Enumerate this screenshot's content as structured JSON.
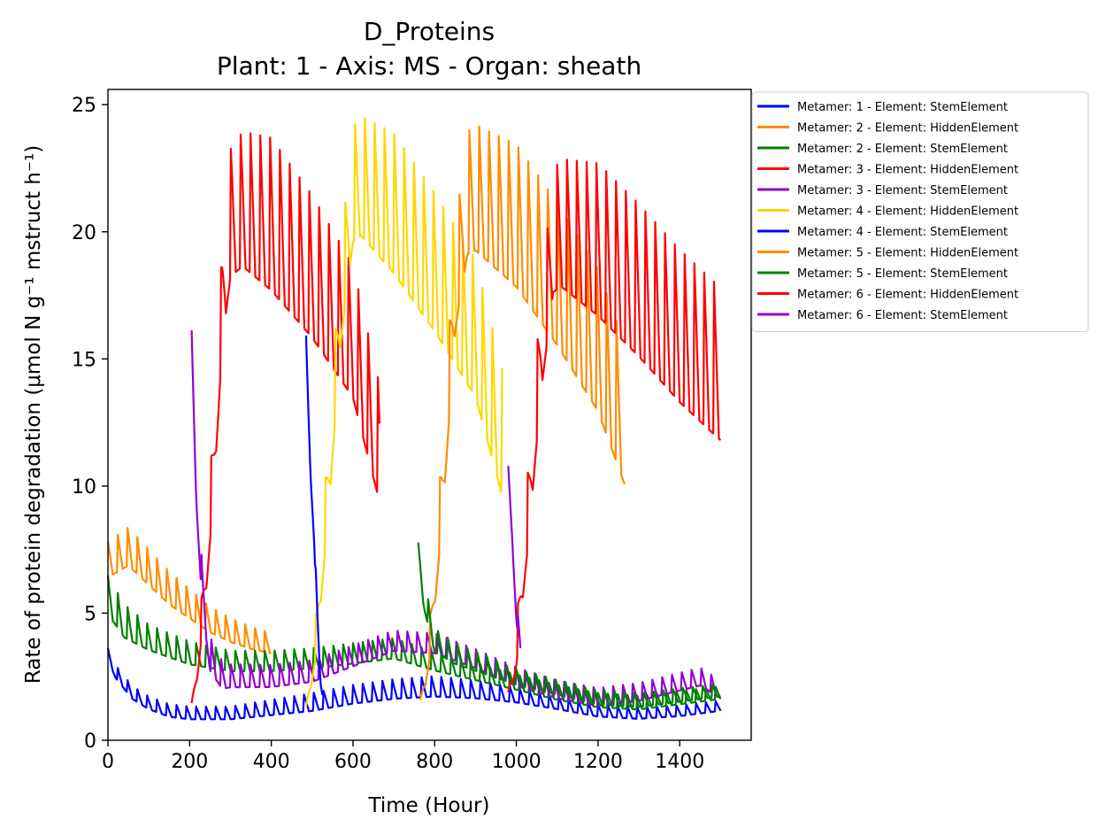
{
  "chart_data": {
    "type": "line",
    "title": "D_Proteins",
    "subtitle": "Plant: 1 - Axis: MS - Organ: sheath",
    "xlabel": "Time (Hour)",
    "ylabel": "Rate of protein degradation (μmol N g⁻¹ mstruct h⁻¹)",
    "xlim": [
      0,
      1575
    ],
    "ylim": [
      0,
      25.6
    ],
    "xticks": [
      0,
      200,
      400,
      600,
      800,
      1000,
      1200,
      1400
    ],
    "yticks": [
      0,
      5,
      10,
      15,
      20,
      25
    ],
    "grid": false,
    "legend_position": "outside-right",
    "series": [
      {
        "name": "Metamer: 1 - Element: StemElement",
        "color": "#0000ff",
        "t_start": 0,
        "t_end": 1500,
        "points": [
          [
            0,
            3.3
          ],
          [
            20,
            2.6
          ],
          [
            60,
            1.8
          ],
          [
            100,
            1.4
          ],
          [
            150,
            1.1
          ],
          [
            200,
            1.0
          ],
          [
            300,
            1.0
          ],
          [
            400,
            1.2
          ],
          [
            500,
            1.4
          ],
          [
            600,
            1.7
          ],
          [
            700,
            1.9
          ],
          [
            800,
            2.0
          ],
          [
            900,
            1.9
          ],
          [
            1000,
            1.7
          ],
          [
            1100,
            1.4
          ],
          [
            1200,
            1.1
          ],
          [
            1300,
            1.0
          ],
          [
            1400,
            1.1
          ],
          [
            1500,
            1.3
          ]
        ],
        "amp_points": [
          [
            0,
            0.5
          ],
          [
            100,
            0.5
          ],
          [
            300,
            0.5
          ],
          [
            500,
            0.7
          ],
          [
            800,
            0.8
          ],
          [
            1100,
            0.5
          ],
          [
            1500,
            0.4
          ]
        ]
      },
      {
        "name": "Metamer: 2 - Element: HiddenElement",
        "color": "#ff8c00",
        "t_start": 0,
        "t_end": 400,
        "points": [
          [
            0,
            6.9
          ],
          [
            50,
            7.4
          ],
          [
            100,
            6.6
          ],
          [
            150,
            5.8
          ],
          [
            200,
            5.2
          ],
          [
            250,
            4.6
          ],
          [
            300,
            4.2
          ],
          [
            350,
            3.9
          ],
          [
            400,
            3.7
          ]
        ],
        "amp_points": [
          [
            0,
            1.4
          ],
          [
            50,
            1.5
          ],
          [
            150,
            1.3
          ],
          [
            250,
            1.0
          ],
          [
            400,
            0.8
          ]
        ]
      },
      {
        "name": "Metamer: 2 - Element: StemElement",
        "color": "#008000",
        "t_start": 0,
        "t_end": 1500,
        "points": [
          [
            0,
            5.5
          ],
          [
            40,
            4.5
          ],
          [
            100,
            3.9
          ],
          [
            200,
            3.3
          ],
          [
            300,
            3.0
          ],
          [
            400,
            3.0
          ],
          [
            500,
            3.1
          ],
          [
            600,
            3.3
          ],
          [
            700,
            3.5
          ],
          [
            800,
            3.0
          ],
          [
            900,
            2.6
          ],
          [
            1000,
            2.2
          ],
          [
            1100,
            1.8
          ],
          [
            1200,
            1.5
          ],
          [
            1300,
            1.4
          ],
          [
            1400,
            1.6
          ],
          [
            1500,
            1.8
          ]
        ],
        "amp_points": [
          [
            0,
            1.5
          ],
          [
            100,
            1.0
          ],
          [
            300,
            0.8
          ],
          [
            700,
            0.8
          ],
          [
            1000,
            0.6
          ],
          [
            1500,
            0.5
          ]
        ]
      },
      {
        "name": "Metamer: 3 - Element: HiddenElement",
        "color": "#ff0000",
        "t_start": 205,
        "t_end": 665,
        "points": [
          [
            205,
            1.2
          ],
          [
            220,
            3.0
          ],
          [
            240,
            6.5
          ],
          [
            260,
            11.0
          ],
          [
            280,
            17.0
          ],
          [
            300,
            20.0
          ],
          [
            330,
            20.5
          ],
          [
            400,
            19.8
          ],
          [
            500,
            17.8
          ],
          [
            600,
            15.3
          ],
          [
            665,
            11.0
          ]
        ],
        "amp_points": [
          [
            205,
            0.4
          ],
          [
            260,
            3.0
          ],
          [
            300,
            5.0
          ],
          [
            400,
            6.0
          ],
          [
            600,
            5.2
          ],
          [
            665,
            4.6
          ]
        ]
      },
      {
        "name": "Metamer: 3 - Element: StemElement",
        "color": "#9400d3",
        "t_start": 205,
        "t_end": 1500,
        "points": [
          [
            205,
            14.5
          ],
          [
            215,
            10.5
          ],
          [
            230,
            6.0
          ],
          [
            250,
            3.2
          ],
          [
            280,
            2.4
          ],
          [
            400,
            2.4
          ],
          [
            500,
            2.6
          ],
          [
            600,
            3.2
          ],
          [
            700,
            3.8
          ],
          [
            800,
            3.7
          ],
          [
            900,
            3.1
          ],
          [
            1000,
            2.4
          ],
          [
            1100,
            1.9
          ],
          [
            1200,
            1.6
          ],
          [
            1300,
            1.8
          ],
          [
            1400,
            2.2
          ],
          [
            1450,
            2.4
          ],
          [
            1500,
            1.9
          ]
        ],
        "amp_points": [
          [
            205,
            2.5
          ],
          [
            230,
            1.5
          ],
          [
            300,
            0.9
          ],
          [
            700,
            0.8
          ],
          [
            1100,
            0.7
          ],
          [
            1500,
            0.7
          ]
        ]
      },
      {
        "name": "Metamer: 4 - Element: HiddenElement",
        "color": "#ffd700",
        "t_start": 485,
        "t_end": 965,
        "points": [
          [
            485,
            1.0
          ],
          [
            510,
            4.0
          ],
          [
            540,
            10.0
          ],
          [
            570,
            17.0
          ],
          [
            600,
            21.2
          ],
          [
            620,
            21.5
          ],
          [
            700,
            20.3
          ],
          [
            800,
            18.0
          ],
          [
            900,
            15.4
          ],
          [
            965,
            11.4
          ]
        ],
        "amp_points": [
          [
            485,
            0.5
          ],
          [
            540,
            3.0
          ],
          [
            600,
            4.5
          ],
          [
            700,
            5.5
          ],
          [
            900,
            5.4
          ],
          [
            965,
            5.0
          ]
        ]
      },
      {
        "name": "Metamer: 4 - Element: StemElement",
        "color": "#0000ff",
        "t_start": 485,
        "t_end": 525,
        "points": [
          [
            485,
            15.4
          ],
          [
            495,
            11.0
          ],
          [
            505,
            8.0
          ],
          [
            512,
            5.0
          ],
          [
            520,
            2.5
          ],
          [
            525,
            2.0
          ]
        ],
        "amp_points": [
          [
            485,
            0.8
          ],
          [
            525,
            0.6
          ]
        ]
      },
      {
        "name": "Metamer: 5 - Element: HiddenElement",
        "color": "#ff8c00",
        "t_start": 765,
        "t_end": 1265,
        "points": [
          [
            765,
            1.2
          ],
          [
            790,
            4.0
          ],
          [
            820,
            10.0
          ],
          [
            850,
            17.5
          ],
          [
            880,
            20.8
          ],
          [
            900,
            21.0
          ],
          [
            1000,
            19.8
          ],
          [
            1100,
            17.5
          ],
          [
            1200,
            14.9
          ],
          [
            1265,
            12.0
          ]
        ],
        "amp_points": [
          [
            765,
            0.6
          ],
          [
            820,
            3.0
          ],
          [
            880,
            4.8
          ],
          [
            1000,
            5.6
          ],
          [
            1200,
            5.6
          ],
          [
            1265,
            5.5
          ]
        ]
      },
      {
        "name": "Metamer: 5 - Element: StemElement",
        "color": "#008000",
        "t_start": 760,
        "t_end": 1500,
        "points": [
          [
            760,
            7.0
          ],
          [
            775,
            5.5
          ],
          [
            800,
            3.8
          ],
          [
            850,
            3.3
          ],
          [
            900,
            3.0
          ],
          [
            1000,
            2.4
          ],
          [
            1100,
            2.0
          ],
          [
            1200,
            1.6
          ],
          [
            1300,
            1.5
          ],
          [
            1400,
            1.7
          ],
          [
            1500,
            1.9
          ]
        ],
        "amp_points": [
          [
            760,
            1.2
          ],
          [
            800,
            0.9
          ],
          [
            1000,
            0.6
          ],
          [
            1500,
            0.5
          ]
        ]
      },
      {
        "name": "Metamer: 6 - Element: HiddenElement",
        "color": "#ff0000",
        "t_start": 980,
        "t_end": 1500,
        "points": [
          [
            980,
            1.5
          ],
          [
            1000,
            3.5
          ],
          [
            1030,
            9.0
          ],
          [
            1060,
            15.0
          ],
          [
            1090,
            19.3
          ],
          [
            1110,
            19.6
          ],
          [
            1200,
            18.8
          ],
          [
            1300,
            17.2
          ],
          [
            1400,
            15.4
          ],
          [
            1500,
            13.9
          ]
        ],
        "amp_points": [
          [
            980,
            0.6
          ],
          [
            1030,
            3.0
          ],
          [
            1090,
            4.8
          ],
          [
            1200,
            6.0
          ],
          [
            1400,
            6.0
          ],
          [
            1500,
            6.0
          ]
        ]
      },
      {
        "name": "Metamer: 6 - Element: StemElement",
        "color": "#9400d3",
        "t_start": 980,
        "t_end": 1010,
        "points": [
          [
            980,
            10.4
          ],
          [
            990,
            8.0
          ],
          [
            1000,
            5.0
          ],
          [
            1010,
            3.5
          ]
        ],
        "amp_points": [
          [
            980,
            0.6
          ],
          [
            1010,
            0.8
          ]
        ]
      }
    ]
  }
}
